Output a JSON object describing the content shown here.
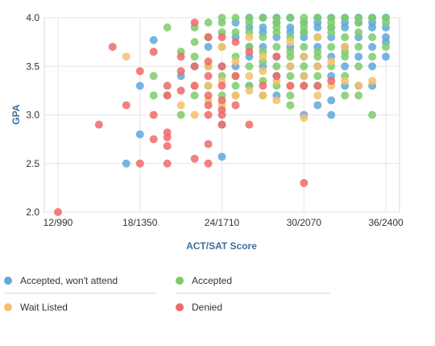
{
  "chart_data": {
    "type": "scatter",
    "title": "",
    "xlabel": "ACT/SAT Score",
    "ylabel": "GPA",
    "xlim": [
      11,
      37
    ],
    "ylim": [
      2.0,
      4.0
    ],
    "x_ticks": [
      {
        "value": 12,
        "label": "12/990"
      },
      {
        "value": 18,
        "label": "18/1350"
      },
      {
        "value": 24,
        "label": "24/1710"
      },
      {
        "value": 30,
        "label": "30/2070"
      },
      {
        "value": 36,
        "label": "36/2400"
      }
    ],
    "y_ticks": [
      {
        "value": 2.0,
        "label": "2.0"
      },
      {
        "value": 2.5,
        "label": "2.5"
      },
      {
        "value": 3.0,
        "label": "3.0"
      },
      {
        "value": 3.5,
        "label": "3.5"
      },
      {
        "value": 4.0,
        "label": "4.0"
      }
    ],
    "grid": true,
    "legend_position": "bottom",
    "series": [
      {
        "name": "Accepted, won't attend",
        "color": "#5fa8dc",
        "points": [
          [
            17,
            2.5
          ],
          [
            18,
            2.8
          ],
          [
            18,
            3.3
          ],
          [
            19,
            3.77
          ],
          [
            21,
            3.4
          ],
          [
            22,
            3.5
          ],
          [
            23,
            3.7
          ],
          [
            24,
            2.9
          ],
          [
            24,
            2.57
          ],
          [
            25,
            3.95
          ],
          [
            25,
            3.8
          ],
          [
            26,
            3.9
          ],
          [
            26,
            4.0
          ],
          [
            26,
            3.6
          ],
          [
            27,
            3.9
          ],
          [
            27,
            4.0
          ],
          [
            27,
            3.7
          ],
          [
            27,
            3.5
          ],
          [
            28,
            3.95
          ],
          [
            28,
            3.8
          ],
          [
            28,
            3.6
          ],
          [
            28,
            4.0
          ],
          [
            29,
            3.9
          ],
          [
            29,
            4.0
          ],
          [
            29,
            3.7
          ],
          [
            29,
            3.5
          ],
          [
            30,
            3.0
          ],
          [
            30,
            3.95
          ],
          [
            30,
            3.8
          ],
          [
            30,
            3.85
          ],
          [
            31,
            4.0
          ],
          [
            31,
            3.9
          ],
          [
            31,
            3.7
          ],
          [
            31,
            3.5
          ],
          [
            31,
            3.1
          ],
          [
            32,
            3.9
          ],
          [
            32,
            4.0
          ],
          [
            32,
            3.8
          ],
          [
            32,
            3.4
          ],
          [
            32,
            3.15
          ],
          [
            33,
            4.0
          ],
          [
            33,
            3.9
          ],
          [
            33,
            3.7
          ],
          [
            33,
            3.5
          ],
          [
            34,
            4.0
          ],
          [
            34,
            3.95
          ],
          [
            34,
            3.8
          ],
          [
            34,
            3.6
          ],
          [
            35,
            4.0
          ],
          [
            35,
            3.9
          ],
          [
            35,
            3.7
          ],
          [
            35,
            3.5
          ],
          [
            36,
            4.0
          ],
          [
            36,
            3.9
          ],
          [
            36,
            3.8
          ],
          [
            36,
            3.75
          ],
          [
            32,
            3.6
          ],
          [
            30,
            3.4
          ],
          [
            28,
            3.2
          ],
          [
            26,
            3.3
          ],
          [
            25,
            3.5
          ],
          [
            33,
            3.3
          ],
          [
            34,
            3.3
          ],
          [
            35,
            3.3
          ],
          [
            36,
            3.6
          ],
          [
            29,
            3.85
          ],
          [
            27,
            3.85
          ],
          [
            31,
            3.95
          ],
          [
            33,
            3.95
          ],
          [
            35,
            3.95
          ],
          [
            30,
            3.6
          ],
          [
            28,
            3.4
          ],
          [
            26,
            3.7
          ],
          [
            24,
            3.5
          ],
          [
            32,
            3.0
          ]
        ]
      },
      {
        "name": "Accepted",
        "color": "#7ccc6c",
        "points": [
          [
            19,
            3.4
          ],
          [
            19,
            3.2
          ],
          [
            20,
            3.9
          ],
          [
            20,
            3.2
          ],
          [
            21,
            3.65
          ],
          [
            21,
            3.0
          ],
          [
            22,
            3.9
          ],
          [
            22,
            3.75
          ],
          [
            22,
            3.6
          ],
          [
            23,
            3.95
          ],
          [
            23,
            3.8
          ],
          [
            23,
            3.3
          ],
          [
            24,
            4.0
          ],
          [
            24,
            3.7
          ],
          [
            24,
            3.2
          ],
          [
            25,
            4.0
          ],
          [
            25,
            3.85
          ],
          [
            25,
            3.6
          ],
          [
            25,
            3.4
          ],
          [
            25,
            3.3
          ],
          [
            26,
            4.0
          ],
          [
            26,
            3.7
          ],
          [
            26,
            3.5
          ],
          [
            26,
            3.3
          ],
          [
            27,
            4.0
          ],
          [
            27,
            3.8
          ],
          [
            27,
            3.55
          ],
          [
            27,
            3.35
          ],
          [
            28,
            4.0
          ],
          [
            28,
            3.9
          ],
          [
            28,
            3.7
          ],
          [
            28,
            3.5
          ],
          [
            28,
            3.3
          ],
          [
            29,
            4.0
          ],
          [
            29,
            3.8
          ],
          [
            29,
            3.6
          ],
          [
            29,
            3.4
          ],
          [
            29,
            3.2
          ],
          [
            30,
            4.0
          ],
          [
            30,
            3.9
          ],
          [
            30,
            3.7
          ],
          [
            30,
            3.5
          ],
          [
            30,
            3.3
          ],
          [
            31,
            4.0
          ],
          [
            31,
            3.8
          ],
          [
            31,
            3.6
          ],
          [
            31,
            3.4
          ],
          [
            32,
            4.0
          ],
          [
            32,
            3.9
          ],
          [
            32,
            3.7
          ],
          [
            32,
            3.5
          ],
          [
            33,
            4.0
          ],
          [
            33,
            3.8
          ],
          [
            33,
            3.6
          ],
          [
            33,
            3.2
          ],
          [
            34,
            4.0
          ],
          [
            34,
            3.7
          ],
          [
            34,
            3.5
          ],
          [
            34,
            3.2
          ],
          [
            35,
            4.0
          ],
          [
            35,
            3.8
          ],
          [
            35,
            3.6
          ],
          [
            35,
            3.0
          ],
          [
            36,
            4.0
          ],
          [
            36,
            3.7
          ],
          [
            24,
            3.85
          ],
          [
            26,
            3.85
          ],
          [
            28,
            3.85
          ],
          [
            30,
            3.85
          ],
          [
            32,
            3.85
          ],
          [
            34,
            3.85
          ],
          [
            27,
            3.65
          ],
          [
            29,
            3.65
          ],
          [
            31,
            3.65
          ],
          [
            33,
            3.65
          ],
          [
            23,
            3.5
          ],
          [
            24,
            3.4
          ],
          [
            22,
            3.2
          ],
          [
            31,
            3.3
          ],
          [
            33,
            3.4
          ],
          [
            25,
            3.2
          ],
          [
            27,
            3.2
          ],
          [
            29,
            3.1
          ],
          [
            24,
            3.95
          ],
          [
            26,
            3.95
          ],
          [
            28,
            3.95
          ],
          [
            30,
            3.95
          ],
          [
            32,
            3.95
          ],
          [
            34,
            3.95
          ],
          [
            36,
            3.95
          ]
        ]
      },
      {
        "name": "Wait Listed",
        "color": "#f7bf6c",
        "points": [
          [
            17,
            3.6
          ],
          [
            21,
            3.1
          ],
          [
            22,
            3.3
          ],
          [
            22,
            3.0
          ],
          [
            23,
            3.5
          ],
          [
            23,
            3.3
          ],
          [
            24,
            3.7
          ],
          [
            24,
            3.1
          ],
          [
            25,
            3.2
          ],
          [
            25,
            3.55
          ],
          [
            26,
            3.8
          ],
          [
            26,
            3.25
          ],
          [
            27,
            3.6
          ],
          [
            27,
            3.2
          ],
          [
            28,
            3.35
          ],
          [
            28,
            3.15
          ],
          [
            29,
            3.5
          ],
          [
            29,
            3.3
          ],
          [
            30,
            2.97
          ],
          [
            30,
            3.6
          ],
          [
            30,
            3.4
          ],
          [
            31,
            3.2
          ],
          [
            31,
            3.8
          ],
          [
            32,
            3.3
          ],
          [
            32,
            3.55
          ],
          [
            33,
            3.7
          ],
          [
            33,
            3.35
          ],
          [
            34,
            3.3
          ],
          [
            35,
            3.35
          ],
          [
            26,
            3.4
          ],
          [
            24,
            3.35
          ],
          [
            29,
            3.75
          ],
          [
            31,
            3.5
          ],
          [
            27,
            3.45
          ],
          [
            23,
            3.15
          ]
        ]
      },
      {
        "name": "Denied",
        "color": "#ef6a6a",
        "points": [
          [
            12,
            2.0
          ],
          [
            15,
            2.9
          ],
          [
            16,
            3.7
          ],
          [
            17,
            3.1
          ],
          [
            18,
            3.45
          ],
          [
            18,
            2.5
          ],
          [
            19,
            3.65
          ],
          [
            19,
            2.75
          ],
          [
            19,
            3.0
          ],
          [
            20,
            2.5
          ],
          [
            20,
            3.3
          ],
          [
            20,
            2.82
          ],
          [
            20,
            3.2
          ],
          [
            20,
            2.68
          ],
          [
            20,
            2.77
          ],
          [
            21,
            3.6
          ],
          [
            21,
            3.45
          ],
          [
            22,
            3.5
          ],
          [
            22,
            3.3
          ],
          [
            22,
            2.55
          ],
          [
            23,
            3.8
          ],
          [
            23,
            3.4
          ],
          [
            23,
            3.1
          ],
          [
            23,
            3.2
          ],
          [
            23,
            2.7
          ],
          [
            23,
            2.5
          ],
          [
            24,
            3.5
          ],
          [
            24,
            3.0
          ],
          [
            24,
            3.05
          ],
          [
            24,
            2.9
          ],
          [
            24,
            3.3
          ],
          [
            25,
            3.1
          ],
          [
            25,
            3.4
          ],
          [
            26,
            3.65
          ],
          [
            26,
            2.9
          ],
          [
            27,
            3.3
          ],
          [
            28,
            3.4
          ],
          [
            29,
            3.3
          ],
          [
            30,
            2.3
          ],
          [
            30,
            3.3
          ],
          [
            31,
            3.3
          ],
          [
            32,
            3.35
          ],
          [
            23,
            3.55
          ],
          [
            22,
            3.95
          ],
          [
            24,
            3.8
          ],
          [
            21,
            3.25
          ],
          [
            24,
            3.15
          ],
          [
            23,
            3.0
          ],
          [
            25,
            3.75
          ],
          [
            28,
            3.6
          ]
        ]
      }
    ]
  }
}
